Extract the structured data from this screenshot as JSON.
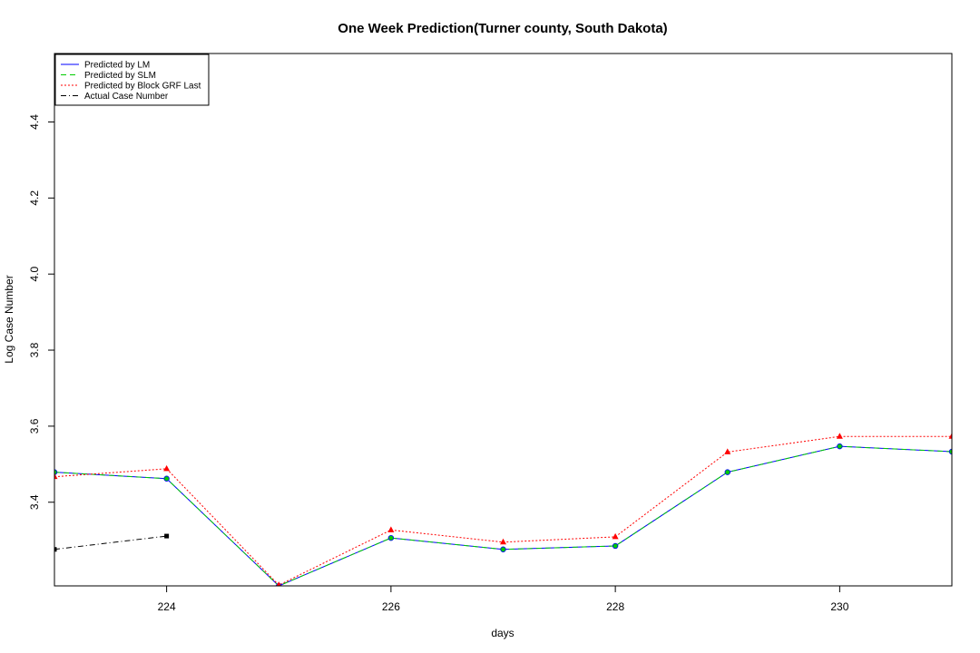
{
  "chart_data": {
    "type": "line",
    "title": "One Week Prediction(Turner county, South Dakota)",
    "xlabel": "days",
    "ylabel": "Log Case Number",
    "xlim": [
      223,
      231
    ],
    "ylim": [
      3.18,
      4.58
    ],
    "x_ticks": [
      224,
      226,
      228,
      230
    ],
    "x_tick_labels": [
      "224",
      "226",
      "228",
      "230"
    ],
    "y_ticks": [
      3.4,
      3.6,
      3.8,
      4.0,
      4.2,
      4.4
    ],
    "y_tick_labels": [
      "3.4",
      "3.6",
      "3.8",
      "4.0",
      "4.2",
      "4.4"
    ],
    "legend_position": "top-left",
    "series": [
      {
        "name": "Predicted by LM",
        "color": "#0000ff",
        "line_style": "solid",
        "marker": "none",
        "x": [
          223,
          224,
          225,
          226,
          227,
          228,
          229,
          230,
          231
        ],
        "y": [
          3.479,
          3.462,
          3.18,
          3.306,
          3.276,
          3.285,
          3.479,
          3.547,
          3.533
        ]
      },
      {
        "name": "Predicted by SLM",
        "color": "#00cc00",
        "line_style": "dashed",
        "marker": "circle",
        "x": [
          223,
          224,
          225,
          226,
          227,
          228,
          229,
          230,
          231
        ],
        "y": [
          3.479,
          3.462,
          3.18,
          3.306,
          3.276,
          3.285,
          3.479,
          3.547,
          3.533
        ]
      },
      {
        "name": "Predicted by Block GRF Last",
        "color": "#ff0000",
        "line_style": "dotted",
        "marker": "triangle",
        "x": [
          223,
          224,
          225,
          226,
          227,
          228,
          229,
          230,
          231
        ],
        "y": [
          3.467,
          3.488,
          3.182,
          3.327,
          3.295,
          3.309,
          3.532,
          3.573,
          3.573
        ]
      },
      {
        "name": "Actual Case Number",
        "color": "#000000",
        "line_style": "dashdot",
        "marker": "square",
        "x": [
          223,
          224
        ],
        "y": [
          3.276,
          3.311
        ]
      }
    ]
  }
}
